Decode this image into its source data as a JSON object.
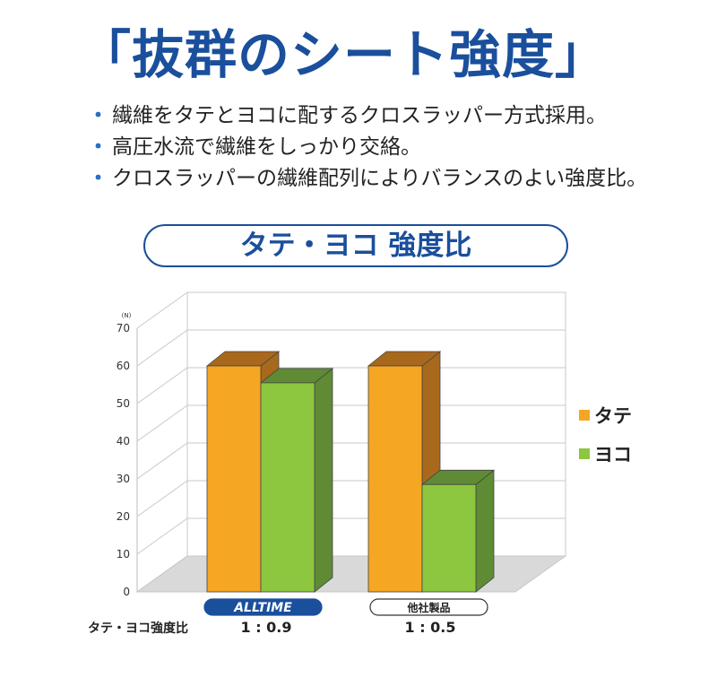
{
  "header": {
    "title": "「抜群のシート強度」",
    "bullets": [
      "繊維をタテとヨコに配するクロスラッパー方式採用。",
      "高圧水流で繊維をしっかり交絡。",
      "クロスラッパーの繊維配列によりバランスのよい強度比。"
    ],
    "bullet_mark": "・"
  },
  "chart_data": {
    "type": "bar",
    "title": "タテ・ヨコ 強度比",
    "ylabel": "(N)",
    "ylim": [
      0,
      70
    ],
    "yticks": [
      "0",
      "10",
      "20",
      "30",
      "40",
      "50",
      "60",
      "70"
    ],
    "categories": [
      "ALLTIME",
      "他社製品"
    ],
    "series": [
      {
        "name": "タテ",
        "color": "#f5a623",
        "values": [
          60,
          60
        ]
      },
      {
        "name": "ヨコ",
        "color": "#8dc63f",
        "values": [
          55.5,
          28.5
        ]
      }
    ],
    "legend_position": "right",
    "grid": true,
    "ratio_label": "タテ・ヨコ強度比",
    "ratios": [
      "1 : 0.9",
      "1 : 0.5"
    ]
  },
  "colors": {
    "brand": "#1a4f9c",
    "tate_side": "#a8691c",
    "yoko_side": "#5e8b34",
    "floor": "#d9d9d9"
  }
}
